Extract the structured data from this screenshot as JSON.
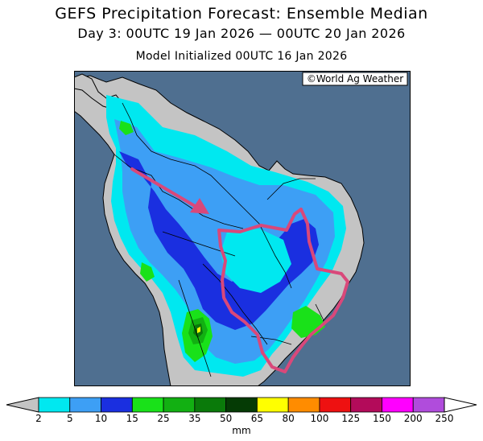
{
  "header": {
    "title": "GEFS Precipitation Forecast: Ensemble Median",
    "period": "Day 3: 00UTC 19 Jan 2026 — 00UTC 20 Jan 2026",
    "initialized": "Model Initialized 00UTC 16 Jan 2026"
  },
  "map": {
    "copyright": "©World Ag Weather",
    "ocean_color": "#4f6f90",
    "land_color": "#c4c4c4",
    "highlight_outline_color": "#d9487a",
    "arrow_color": "#d9487a"
  },
  "colorbar": {
    "units": "mm",
    "tick_labels": [
      "2",
      "5",
      "10",
      "15",
      "25",
      "35",
      "50",
      "65",
      "80",
      "100",
      "125",
      "150",
      "200",
      "250"
    ],
    "colors": [
      "#00e8f0",
      "#3d9ff5",
      "#1a2fe0",
      "#19e119",
      "#12b012",
      "#0a7a0a",
      "#053b05",
      "#ffff00",
      "#ff8c00",
      "#ee1111",
      "#b30b5a",
      "#ff00ff",
      "#b04cdc"
    ],
    "under_color": "#c4c4c4",
    "over_color": "#ffffff"
  }
}
